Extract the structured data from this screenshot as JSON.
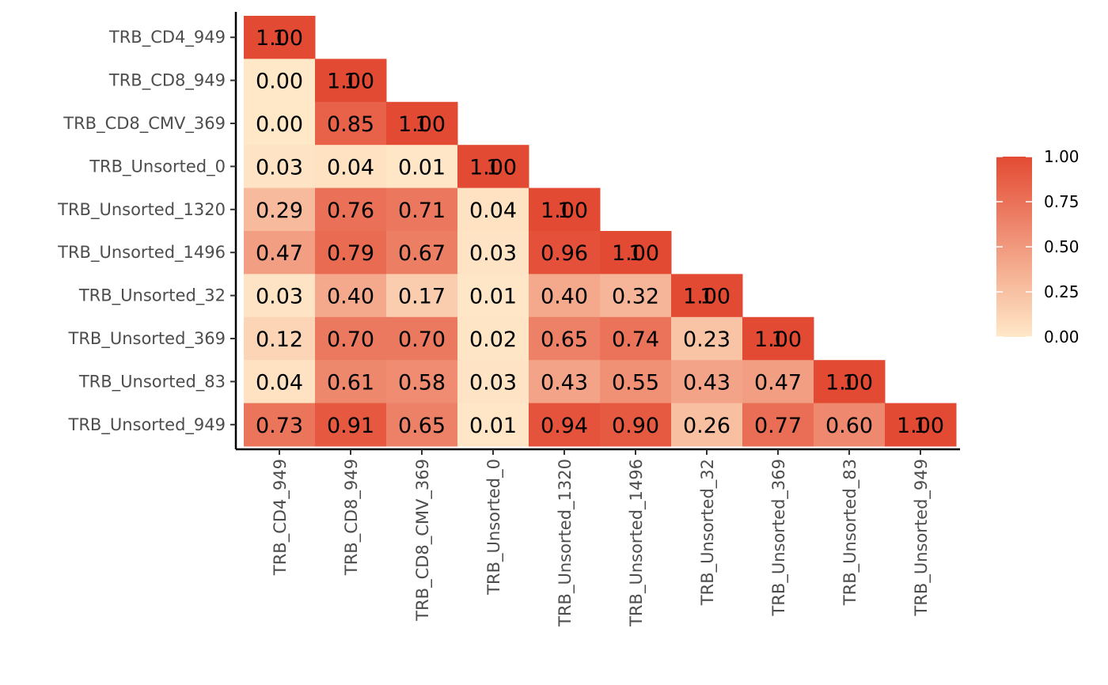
{
  "chart_data": {
    "type": "heatmap",
    "title": "",
    "xlabel": "",
    "ylabel": "",
    "categories": [
      "TRB_CD4_949",
      "TRB_CD8_949",
      "TRB_CD8_CMV_369",
      "TRB_Unsorted_0",
      "TRB_Unsorted_1320",
      "TRB_Unsorted_1496",
      "TRB_Unsorted_32",
      "TRB_Unsorted_369",
      "TRB_Unsorted_83",
      "TRB_Unsorted_949"
    ],
    "matrix": [
      [
        1.0,
        null,
        null,
        null,
        null,
        null,
        null,
        null,
        null,
        null
      ],
      [
        0.0,
        1.0,
        null,
        null,
        null,
        null,
        null,
        null,
        null,
        null
      ],
      [
        0.0,
        0.85,
        1.0,
        null,
        null,
        null,
        null,
        null,
        null,
        null
      ],
      [
        0.03,
        0.04,
        0.01,
        1.0,
        null,
        null,
        null,
        null,
        null,
        null
      ],
      [
        0.29,
        0.76,
        0.71,
        0.04,
        1.0,
        null,
        null,
        null,
        null,
        null
      ],
      [
        0.47,
        0.79,
        0.67,
        0.03,
        0.96,
        1.0,
        null,
        null,
        null,
        null
      ],
      [
        0.03,
        0.4,
        0.17,
        0.01,
        0.4,
        0.32,
        1.0,
        null,
        null,
        null
      ],
      [
        0.12,
        0.7,
        0.7,
        0.02,
        0.65,
        0.74,
        0.23,
        1.0,
        null,
        null
      ],
      [
        0.04,
        0.61,
        0.58,
        0.03,
        0.43,
        0.55,
        0.43,
        0.47,
        1.0,
        null
      ],
      [
        0.73,
        0.91,
        0.65,
        0.01,
        0.94,
        0.9,
        0.26,
        0.77,
        0.6,
        1.0
      ]
    ],
    "diagonal_overlay_labels": [
      "1",
      "1.00"
    ],
    "color_scale": {
      "low": "#FFE8C8",
      "high": "#E34A33",
      "range": [
        0,
        1
      ]
    },
    "legend": {
      "position": "right",
      "ticks": [
        "1.00",
        "0.75",
        "0.50",
        "0.25",
        "0.00"
      ],
      "tick_values": [
        1.0,
        0.75,
        0.5,
        0.25,
        0.0
      ]
    },
    "grid": false
  }
}
